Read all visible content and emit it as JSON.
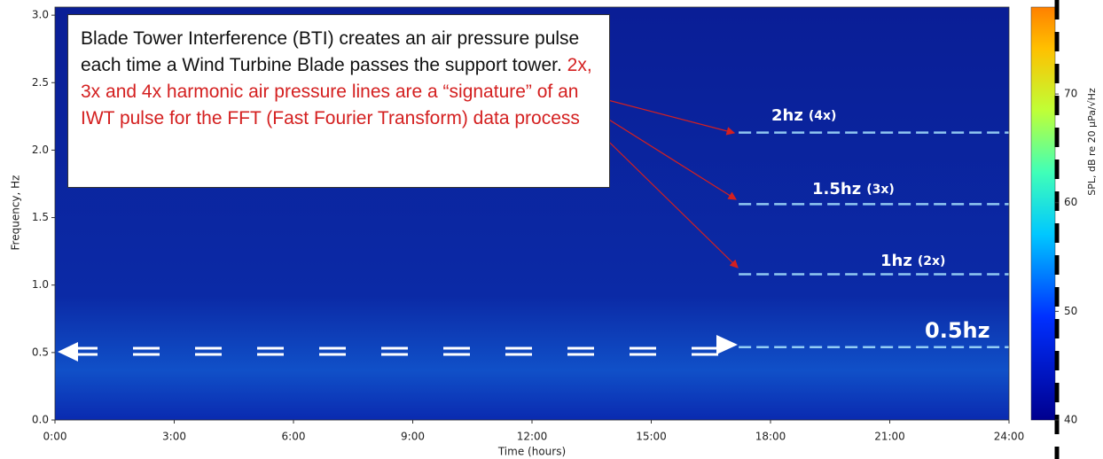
{
  "chart_data": {
    "type": "spectrogram",
    "xlabel": "Time (hours)",
    "ylabel": "Frequency, Hz",
    "xlim": [
      0,
      24
    ],
    "xticks": [
      {
        "value": 0,
        "label": "0:00"
      },
      {
        "value": 3,
        "label": "3:00"
      },
      {
        "value": 6,
        "label": "6:00"
      },
      {
        "value": 9,
        "label": "9:00"
      },
      {
        "value": 12,
        "label": "12:00"
      },
      {
        "value": 15,
        "label": "15:00"
      },
      {
        "value": 18,
        "label": "18:00"
      },
      {
        "value": 21,
        "label": "21:00"
      },
      {
        "value": 24,
        "label": "24:00"
      }
    ],
    "ylim": [
      0,
      3.06
    ],
    "yticks": [
      {
        "value": 0,
        "label": "0.0"
      },
      {
        "value": 0.5,
        "label": "0.5"
      },
      {
        "value": 1,
        "label": "1.0"
      },
      {
        "value": 1.5,
        "label": "1.5"
      },
      {
        "value": 2,
        "label": "2.0"
      },
      {
        "value": 2.5,
        "label": "2.5"
      },
      {
        "value": 3,
        "label": "3.0"
      }
    ],
    "colorbar": {
      "label": "SPL, dB re 20 µPa/√Hz",
      "lim": [
        40,
        78
      ],
      "ticks": [
        40,
        50,
        60,
        70
      ]
    },
    "harmonics": [
      {
        "frequency": 2.13,
        "start": 17.2,
        "end": 24
      },
      {
        "frequency": 1.6,
        "start": 17.2,
        "end": 24
      },
      {
        "frequency": 1.08,
        "start": 17.2,
        "end": 24
      },
      {
        "frequency": 0.54,
        "start": 17.2,
        "end": 24
      }
    ],
    "harmonic_color": "#a8e4ff",
    "annotations": {
      "box_text": "Blade Tower Interference (BTI) creates an air pressure pulse each time a Wind Turbine Blade passes the support tower.",
      "box_text_red": "2x, 3x and 4x harmonic air pressure lines are a “signature” of an IWT pulse for the FFT (Fast Fourier Transform) data process",
      "labels": [
        {
          "text": "2hz",
          "sub": "(4x)"
        },
        {
          "text": "1.5hz",
          "sub": "(3x)"
        },
        {
          "text": "1hz",
          "sub": "(2x)"
        }
      ],
      "big_label": "0.5hz"
    }
  }
}
